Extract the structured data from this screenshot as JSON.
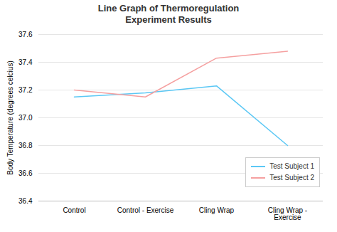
{
  "chart_data": {
    "type": "line",
    "title": "Line Graph of Thermoregulation\nExperiment Results",
    "ylabel": "Body Temperature (degrees celcius)",
    "categories": [
      "Control",
      "Control - Exercise",
      "Cling Wrap",
      "Cling Wrap -\nExercise"
    ],
    "series": [
      {
        "name": "Test Subject 1",
        "color": "#5BC8F5",
        "values": [
          37.15,
          37.18,
          37.23,
          36.8
        ]
      },
      {
        "name": "Test Subject 2",
        "color": "#F5A0A0",
        "values": [
          37.2,
          37.15,
          37.43,
          37.48
        ]
      }
    ],
    "ylim": [
      36.4,
      37.6
    ],
    "yticks": [
      36.4,
      36.6,
      36.8,
      {
        "value": 37.0,
        "label": "37.0"
      },
      37.2,
      37.4,
      37.6
    ],
    "grid": true,
    "legend": "lower right"
  }
}
